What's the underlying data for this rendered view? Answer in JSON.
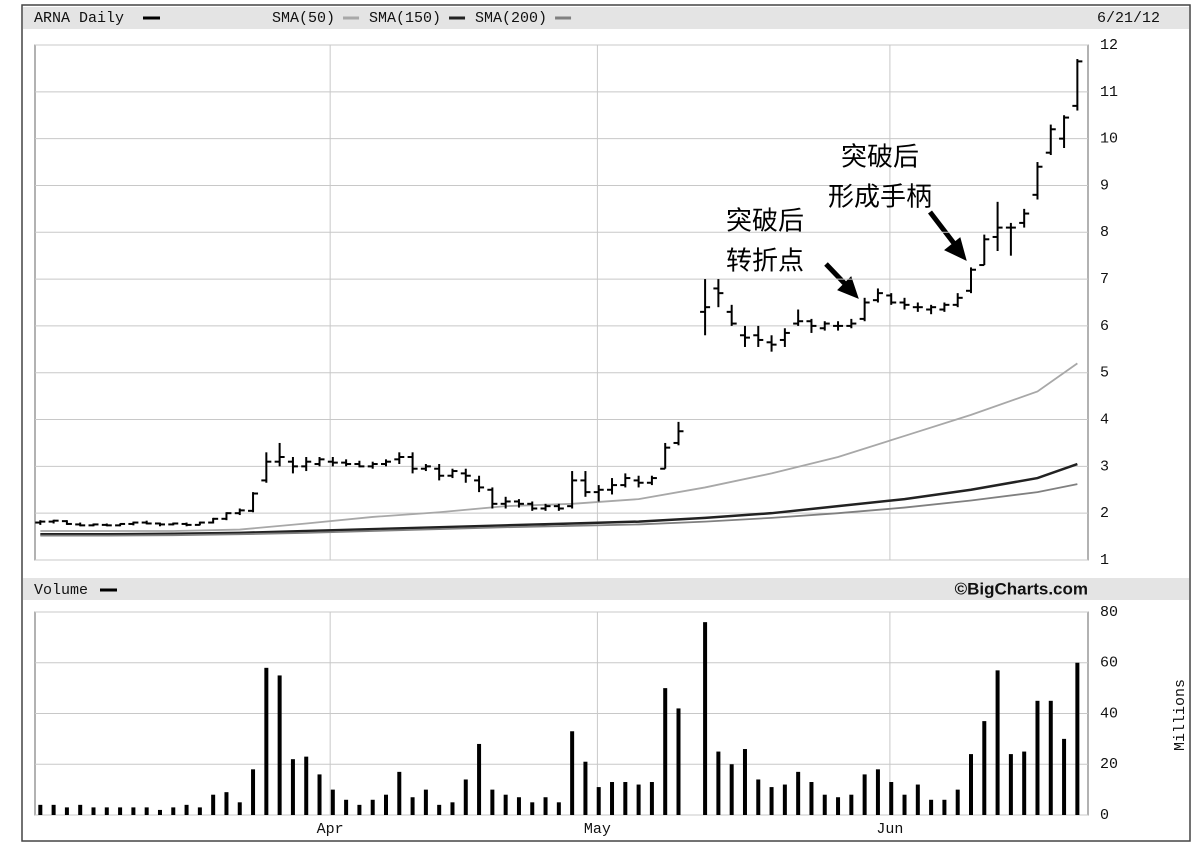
{
  "chart_data": [
    {
      "type": "ohlc",
      "title": "ARNA Daily",
      "date": "6/21/12",
      "color": "#000000",
      "open": [
        1.8,
        1.82,
        1.83,
        1.76,
        1.74,
        1.75,
        1.74,
        1.77,
        1.8,
        1.78,
        1.76,
        1.77,
        1.75,
        1.8,
        1.88,
        2.0,
        2.05,
        2.7,
        3.1,
        3.1,
        3.0,
        3.05,
        3.1,
        3.08,
        3.05,
        3.0,
        3.05,
        3.15,
        3.2,
        2.95,
        2.95,
        2.8,
        2.85,
        2.7,
        2.5,
        2.2,
        2.25,
        2.2,
        2.1,
        2.15,
        2.15,
        2.7,
        2.45,
        2.5,
        2.6,
        2.7,
        2.65,
        2.95,
        3.5,
        null,
        6.3,
        6.8,
        6.3,
        5.8,
        5.8,
        5.65,
        5.7,
        6.05,
        6.1,
        5.95,
        6.0,
        6.0,
        6.15,
        6.55,
        6.65,
        6.5,
        6.4,
        6.35,
        6.35,
        6.45,
        6.75,
        7.3,
        7.9,
        8.1,
        8.2,
        8.8,
        9.7,
        10.0,
        10.7
      ],
      "high": [
        1.85,
        1.86,
        1.85,
        1.8,
        1.78,
        1.78,
        1.78,
        1.82,
        1.84,
        1.8,
        1.8,
        1.8,
        1.82,
        1.9,
        2.02,
        2.1,
        2.45,
        3.3,
        3.5,
        3.2,
        3.2,
        3.2,
        3.2,
        3.15,
        3.12,
        3.1,
        3.15,
        3.3,
        3.3,
        3.05,
        3.05,
        2.95,
        2.95,
        2.8,
        2.55,
        2.35,
        2.3,
        2.25,
        2.2,
        2.2,
        2.9,
        2.9,
        2.6,
        2.75,
        2.85,
        2.8,
        2.8,
        3.5,
        3.95,
        null,
        7.0,
        7.0,
        6.45,
        6.0,
        6.0,
        5.8,
        5.95,
        6.35,
        6.15,
        6.1,
        6.1,
        6.15,
        6.6,
        6.8,
        6.7,
        6.6,
        6.5,
        6.45,
        6.5,
        6.7,
        7.25,
        7.95,
        8.65,
        8.2,
        8.5,
        9.5,
        10.3,
        10.5,
        11.7
      ],
      "low": [
        1.75,
        1.78,
        1.75,
        1.72,
        1.72,
        1.72,
        1.72,
        1.74,
        1.76,
        1.72,
        1.74,
        1.72,
        1.74,
        1.78,
        1.85,
        1.96,
        2.02,
        2.65,
        3.0,
        2.85,
        2.9,
        3.0,
        3.0,
        3.0,
        2.98,
        2.95,
        3.0,
        3.05,
        2.85,
        2.9,
        2.7,
        2.75,
        2.65,
        2.45,
        2.1,
        2.1,
        2.12,
        2.05,
        2.05,
        2.05,
        2.1,
        2.35,
        2.25,
        2.4,
        2.55,
        2.55,
        2.6,
        2.95,
        3.45,
        null,
        5.8,
        6.4,
        6.0,
        5.55,
        5.55,
        5.45,
        5.55,
        6.0,
        5.85,
        5.9,
        5.9,
        5.95,
        6.1,
        6.5,
        6.45,
        6.35,
        6.3,
        6.25,
        6.3,
        6.4,
        6.7,
        7.3,
        7.6,
        7.5,
        8.1,
        8.7,
        9.65,
        9.8,
        10.6
      ],
      "close": [
        1.82,
        1.84,
        1.77,
        1.74,
        1.76,
        1.74,
        1.77,
        1.8,
        1.78,
        1.76,
        1.78,
        1.75,
        1.8,
        1.88,
        2.0,
        2.06,
        2.42,
        3.1,
        3.2,
        3.0,
        3.1,
        3.15,
        3.08,
        3.05,
        3.0,
        3.05,
        3.1,
        3.2,
        2.95,
        3.0,
        2.8,
        2.9,
        2.8,
        2.55,
        2.2,
        2.25,
        2.2,
        2.1,
        2.15,
        2.1,
        2.7,
        2.45,
        2.5,
        2.6,
        2.75,
        2.65,
        2.75,
        3.4,
        3.75,
        null,
        6.4,
        6.7,
        6.05,
        5.75,
        5.7,
        5.6,
        5.85,
        6.1,
        6.0,
        6.05,
        6.0,
        6.05,
        6.5,
        6.7,
        6.5,
        6.45,
        6.4,
        6.4,
        6.45,
        6.6,
        7.2,
        7.85,
        8.1,
        8.1,
        8.4,
        9.4,
        10.2,
        10.45,
        11.65
      ],
      "lines": [
        {
          "name": "SMA(50)",
          "color": "#a8a8a8",
          "x": [
            0,
            5,
            10,
            15,
            20,
            25,
            30,
            35,
            40,
            45,
            50,
            55,
            60,
            65,
            70,
            75,
            78
          ],
          "values": [
            1.62,
            1.62,
            1.62,
            1.65,
            1.78,
            1.92,
            2.02,
            2.15,
            2.2,
            2.3,
            2.55,
            2.85,
            3.2,
            3.65,
            4.1,
            4.6,
            5.2
          ]
        },
        {
          "name": "SMA(150)",
          "color": "#222222",
          "x": [
            0,
            5,
            10,
            15,
            20,
            25,
            30,
            35,
            40,
            45,
            50,
            55,
            60,
            65,
            70,
            75,
            78
          ],
          "values": [
            1.55,
            1.55,
            1.56,
            1.58,
            1.62,
            1.66,
            1.7,
            1.74,
            1.78,
            1.82,
            1.9,
            2.0,
            2.15,
            2.3,
            2.5,
            2.75,
            3.05
          ]
        },
        {
          "name": "SMA(200)",
          "color": "#808080",
          "x": [
            0,
            5,
            10,
            15,
            20,
            25,
            30,
            35,
            40,
            45,
            50,
            55,
            60,
            65,
            70,
            75,
            78
          ],
          "values": [
            1.52,
            1.52,
            1.53,
            1.55,
            1.58,
            1.62,
            1.66,
            1.7,
            1.73,
            1.76,
            1.82,
            1.9,
            2.0,
            2.12,
            2.27,
            2.45,
            2.62
          ]
        }
      ],
      "xlim": [
        -0.4,
        78.8
      ],
      "ylim": [
        1,
        12
      ],
      "yticks": [
        1,
        2,
        3,
        4,
        5,
        6,
        7,
        8,
        9,
        10,
        11,
        12
      ],
      "grid": true,
      "annotations": [
        [
          "突破后",
          "转折点"
        ],
        [
          "突破后",
          "形成手柄"
        ]
      ]
    },
    {
      "type": "bar",
      "title": "Volume",
      "source": "©BigCharts.com",
      "y_label": "Millions",
      "color": "#000000",
      "values": [
        4,
        4,
        3,
        4,
        3,
        3,
        3,
        3,
        3,
        2,
        3,
        4,
        3,
        8,
        9,
        5,
        18,
        58,
        55,
        22,
        23,
        16,
        10,
        6,
        4,
        6,
        8,
        17,
        7,
        10,
        4,
        5,
        14,
        28,
        10,
        8,
        7,
        5,
        7,
        5,
        33,
        21,
        11,
        13,
        13,
        12,
        13,
        50,
        42,
        null,
        76,
        25,
        20,
        26,
        14,
        11,
        12,
        17,
        13,
        8,
        7,
        8,
        16,
        18,
        13,
        8,
        12,
        6,
        6,
        10,
        24,
        37,
        57,
        24,
        25,
        45,
        45,
        30,
        60
      ],
      "xlim": [
        -0.4,
        78.8
      ],
      "xticks": [
        {
          "value": 21.8,
          "label": "Apr"
        },
        {
          "value": 41.9,
          "label": "May"
        },
        {
          "value": 63.9,
          "label": "Jun"
        }
      ],
      "ylim": [
        0,
        80
      ],
      "yticks": [
        0,
        20,
        40,
        60,
        80
      ],
      "grid": true
    }
  ]
}
